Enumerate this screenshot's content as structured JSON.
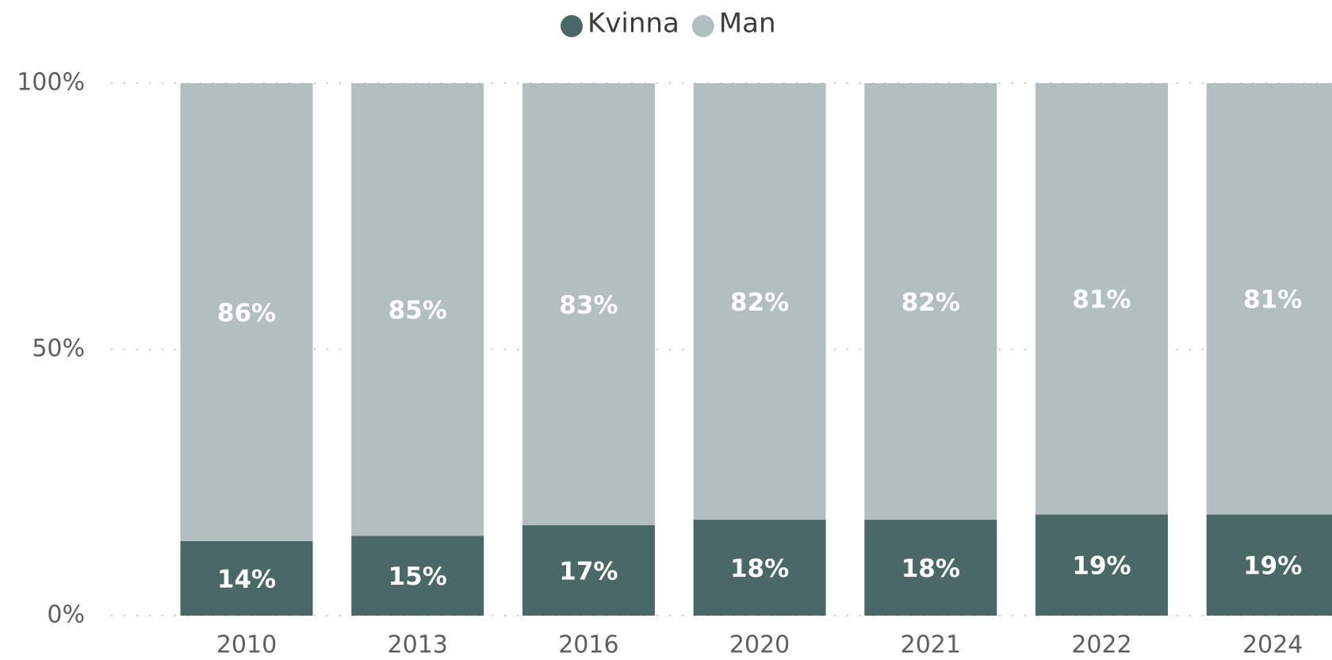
{
  "chart_data": {
    "type": "stacked_bar",
    "categories": [
      "2010",
      "2013",
      "2016",
      "2020",
      "2021",
      "2022",
      "2024"
    ],
    "series": [
      {
        "name": "Kvinna",
        "color": "#4a6966",
        "values": [
          14,
          15,
          17,
          18,
          18,
          19,
          19
        ],
        "value_labels": [
          "14%",
          "15%",
          "17%",
          "18%",
          "18%",
          "19%",
          "19%"
        ]
      },
      {
        "name": "Man",
        "color": "#b3bfbf",
        "values": [
          86,
          85,
          83,
          82,
          82,
          81,
          81
        ],
        "value_labels": [
          "86%",
          "85%",
          "83%",
          "82%",
          "82%",
          "81%",
          "81%"
        ]
      }
    ],
    "ylim": [
      0,
      100
    ],
    "yticks": [
      {
        "value": 0,
        "label": "0%"
      },
      {
        "value": 50,
        "label": "50%"
      },
      {
        "value": 100,
        "label": "100%"
      }
    ],
    "grid": true,
    "legend": "top"
  }
}
